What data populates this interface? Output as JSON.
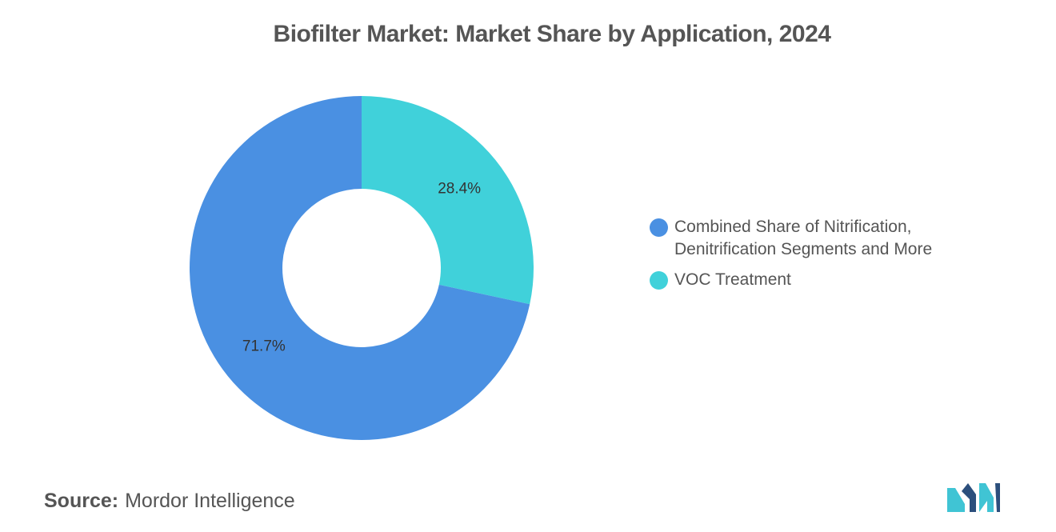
{
  "chart_data": {
    "type": "pie",
    "donut": true,
    "title": "Biofilter Market: Market Share by Application, 2024",
    "categories": [
      "Combined Share of Nitrification, Denitrification Segments and More",
      "VOC Treatment"
    ],
    "legend_lines": [
      "Combined Share of Nitrification,\nDenitrification Segments and More",
      "VOC Treatment"
    ],
    "values": [
      71.7,
      28.4
    ],
    "data_labels": [
      "71.7%",
      "28.4%"
    ],
    "colors": [
      "#4a90e2",
      "#40d1da"
    ],
    "legend_position": "right"
  },
  "source": {
    "label": "Source:",
    "value": "Mordor Intelligence"
  },
  "logo": {
    "icon": "mordor-intelligence-logo",
    "colors": [
      "#2c4f7c",
      "#40c4d4"
    ]
  }
}
